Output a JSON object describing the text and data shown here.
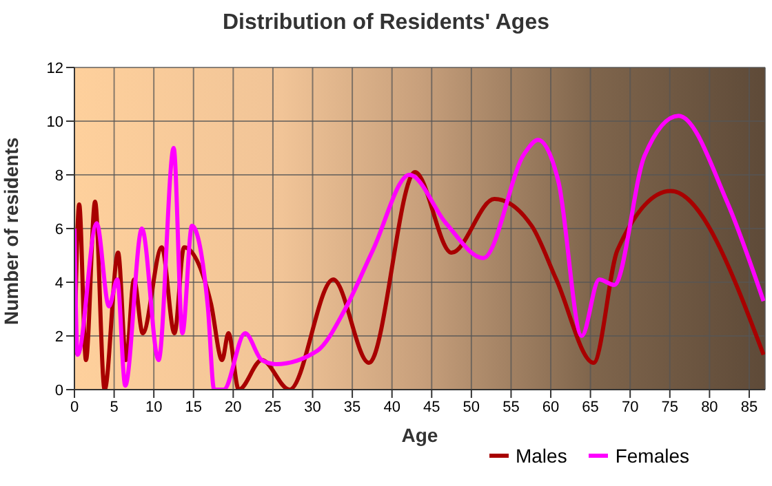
{
  "chart_data": {
    "type": "line",
    "title": "Distribution of Residents' Ages",
    "xlabel": "Age",
    "ylabel": "Number of residents",
    "xlim": [
      0,
      87
    ],
    "xticks": [
      0,
      5,
      10,
      15,
      20,
      25,
      30,
      35,
      40,
      45,
      50,
      55,
      60,
      65,
      70,
      75,
      80,
      85
    ],
    "ylim": [
      0,
      12
    ],
    "yticks": [
      0,
      2,
      4,
      6,
      8,
      10,
      12
    ],
    "grid": true,
    "legend": "bottom",
    "marker": "none",
    "line_style": "solid",
    "series": [
      {
        "name": "Males",
        "color": "#a80000",
        "x": [
          0,
          0.6,
          1.45,
          2.6,
          3.8,
          5.5,
          6.5,
          7.5,
          8.6,
          11,
          12.6,
          13.8,
          17.2,
          18.6,
          19.4,
          20.7,
          23.6,
          27.1,
          32.6,
          37.1,
          42.9,
          47.5,
          52.9,
          57.6,
          60.7,
          65.4,
          68.4,
          75.1,
          86.8
        ],
        "values": [
          1.3,
          6.9,
          1.1,
          7,
          0,
          5.1,
          1.1,
          4.1,
          2.1,
          5.3,
          2.1,
          5.3,
          3.2,
          1.1,
          2.1,
          0,
          1.1,
          0,
          4.1,
          1,
          8.1,
          5.1,
          7.1,
          6.1,
          4.1,
          1,
          5.2,
          7.4,
          1.3
        ]
      },
      {
        "name": "Females",
        "color": "#ff00ff",
        "x": [
          0,
          0.4,
          2.8,
          4.35,
          5.4,
          6.4,
          8.5,
          10.6,
          12.5,
          13.6,
          14.8,
          16.8,
          17.6,
          18.8,
          21.5,
          23.6,
          25.4,
          30.6,
          34.1,
          37.6,
          42.2,
          46.8,
          51.5,
          56.7,
          58.4,
          61,
          63.9,
          66.1,
          68,
          71.8,
          76.1,
          82.2,
          86.8
        ],
        "values": [
          6,
          1.3,
          6.2,
          3.1,
          4.1,
          0.15,
          6,
          1.1,
          9,
          2.1,
          6.1,
          3.1,
          0,
          0,
          2.1,
          1.1,
          0.95,
          1.45,
          3,
          5.2,
          8,
          6.2,
          4.9,
          8.8,
          9.3,
          7.7,
          2,
          4.1,
          3.9,
          8.7,
          10.2,
          7,
          3.3
        ]
      }
    ]
  }
}
